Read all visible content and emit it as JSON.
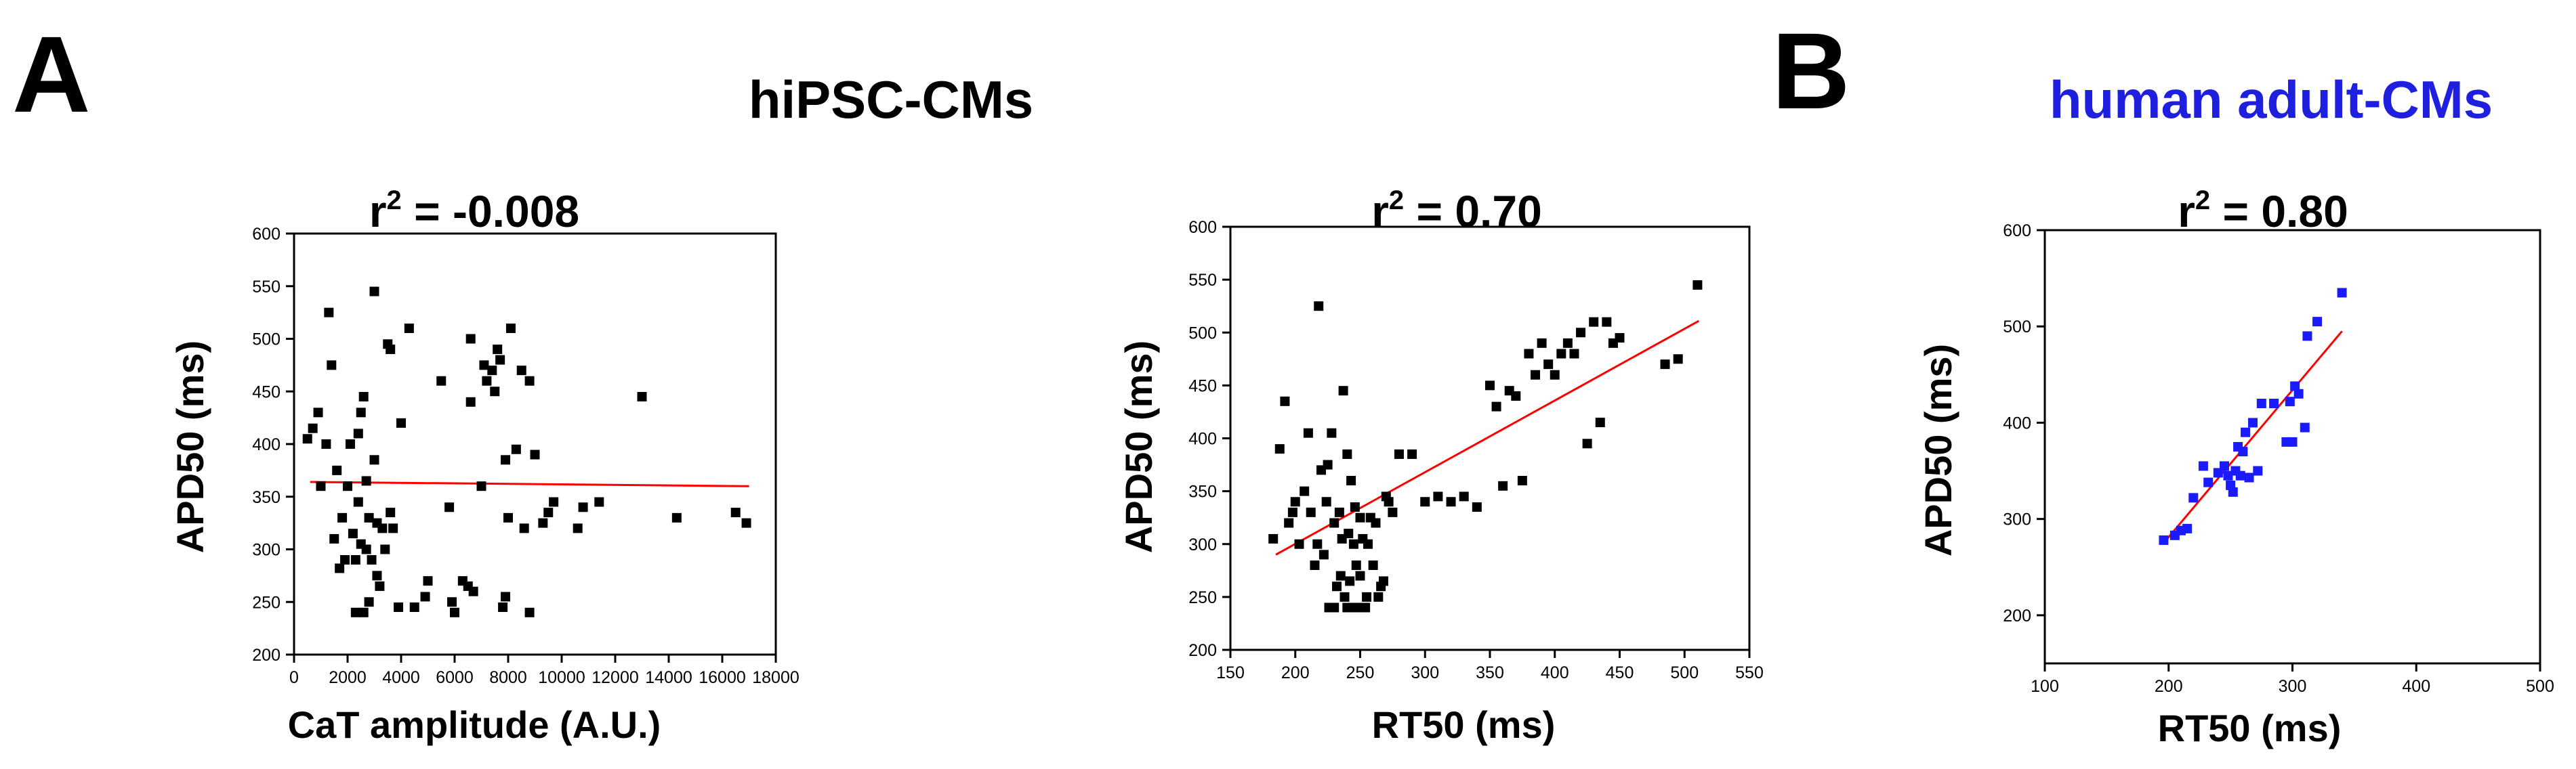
{
  "panel_letters": {
    "a": "A",
    "b": "B"
  },
  "group_titles": {
    "hipsc": "hiPSC-CMs",
    "adult": "human adult-CMs"
  },
  "colors": {
    "adult_title": "#1f1fe0",
    "adult_marker": "#1a1aff",
    "fit_line": "#ff0000",
    "marker": "#000000"
  },
  "chart_data": [
    {
      "id": "p1",
      "type": "scatter",
      "title": "r2 = -0.008",
      "r2_text": {
        "prefix": "r",
        "sup": "2",
        "suffix": " = -0.008"
      },
      "xlabel": "CaT amplitude (A.U.)",
      "ylabel": "APD50 (ms)",
      "xlim": [
        0,
        18000
      ],
      "ylim": [
        200,
        600
      ],
      "xticks": [
        0,
        2000,
        4000,
        6000,
        8000,
        10000,
        12000,
        14000,
        16000,
        18000
      ],
      "yticks": [
        200,
        250,
        300,
        350,
        400,
        450,
        500,
        550,
        600
      ],
      "marker": "square",
      "marker_color": "#000000",
      "fit": {
        "x": [
          600,
          17000
        ],
        "y": [
          364,
          360
        ]
      },
      "points": [
        [
          500,
          405
        ],
        [
          700,
          415
        ],
        [
          900,
          430
        ],
        [
          1000,
          360
        ],
        [
          1200,
          400
        ],
        [
          1300,
          525
        ],
        [
          1400,
          475
        ],
        [
          1500,
          310
        ],
        [
          1600,
          375
        ],
        [
          1700,
          282
        ],
        [
          1800,
          330
        ],
        [
          1900,
          290
        ],
        [
          2000,
          360
        ],
        [
          2100,
          400
        ],
        [
          2200,
          315
        ],
        [
          2300,
          240
        ],
        [
          2300,
          290
        ],
        [
          2400,
          410
        ],
        [
          2400,
          345
        ],
        [
          2500,
          430
        ],
        [
          2500,
          305
        ],
        [
          2600,
          445
        ],
        [
          2600,
          240
        ],
        [
          2700,
          365
        ],
        [
          2700,
          300
        ],
        [
          2800,
          330
        ],
        [
          2800,
          250
        ],
        [
          2900,
          290
        ],
        [
          3000,
          545
        ],
        [
          3000,
          385
        ],
        [
          3100,
          325
        ],
        [
          3100,
          275
        ],
        [
          3200,
          265
        ],
        [
          3300,
          320
        ],
        [
          3400,
          300
        ],
        [
          3500,
          495
        ],
        [
          3600,
          490
        ],
        [
          3600,
          335
        ],
        [
          3700,
          320
        ],
        [
          3900,
          245
        ],
        [
          4000,
          420
        ],
        [
          4300,
          510
        ],
        [
          4500,
          245
        ],
        [
          4900,
          255
        ],
        [
          5000,
          270
        ],
        [
          5500,
          460
        ],
        [
          5800,
          340
        ],
        [
          5900,
          250
        ],
        [
          6000,
          240
        ],
        [
          6300,
          270
        ],
        [
          6500,
          265
        ],
        [
          6600,
          500
        ],
        [
          6600,
          440
        ],
        [
          6700,
          260
        ],
        [
          7000,
          360
        ],
        [
          7100,
          475
        ],
        [
          7200,
          460
        ],
        [
          7400,
          470
        ],
        [
          7500,
          450
        ],
        [
          7600,
          490
        ],
        [
          7700,
          480
        ],
        [
          7800,
          245
        ],
        [
          7900,
          255
        ],
        [
          7900,
          385
        ],
        [
          8000,
          330
        ],
        [
          8100,
          510
        ],
        [
          8300,
          395
        ],
        [
          8500,
          470
        ],
        [
          8600,
          320
        ],
        [
          8800,
          240
        ],
        [
          8800,
          460
        ],
        [
          9000,
          390
        ],
        [
          9300,
          325
        ],
        [
          9500,
          335
        ],
        [
          9700,
          345
        ],
        [
          10600,
          320
        ],
        [
          10800,
          340
        ],
        [
          11400,
          345
        ],
        [
          13000,
          445
        ],
        [
          14300,
          330
        ],
        [
          16500,
          335
        ],
        [
          16900,
          325
        ]
      ]
    },
    {
      "id": "p2",
      "type": "scatter",
      "title": "r2 = 0.70",
      "r2_text": {
        "prefix": "r",
        "sup": "2",
        "suffix": " = 0.70"
      },
      "xlabel": "RT50 (ms)",
      "ylabel": "APD50 (ms)",
      "xlim": [
        150,
        550
      ],
      "ylim": [
        200,
        600
      ],
      "xticks": [
        150,
        200,
        250,
        300,
        350,
        400,
        450,
        500,
        550
      ],
      "yticks": [
        200,
        250,
        300,
        350,
        400,
        450,
        500,
        550,
        600
      ],
      "marker": "square",
      "marker_color": "#000000",
      "fit": {
        "x": [
          185,
          511
        ],
        "y": [
          290,
          511
        ]
      },
      "points": [
        [
          183,
          305
        ],
        [
          188,
          390
        ],
        [
          192,
          435
        ],
        [
          195,
          320
        ],
        [
          198,
          330
        ],
        [
          200,
          340
        ],
        [
          203,
          300
        ],
        [
          207,
          350
        ],
        [
          210,
          405
        ],
        [
          212,
          330
        ],
        [
          215,
          280
        ],
        [
          217,
          300
        ],
        [
          218,
          525
        ],
        [
          220,
          370
        ],
        [
          222,
          290
        ],
        [
          224,
          340
        ],
        [
          225,
          375
        ],
        [
          226,
          240
        ],
        [
          228,
          405
        ],
        [
          230,
          240
        ],
        [
          230,
          320
        ],
        [
          232,
          260
        ],
        [
          234,
          330
        ],
        [
          235,
          270
        ],
        [
          236,
          305
        ],
        [
          237,
          445
        ],
        [
          238,
          250
        ],
        [
          240,
          240
        ],
        [
          240,
          385
        ],
        [
          241,
          310
        ],
        [
          242,
          265
        ],
        [
          243,
          360
        ],
        [
          244,
          240
        ],
        [
          245,
          300
        ],
        [
          246,
          335
        ],
        [
          247,
          280
        ],
        [
          249,
          240
        ],
        [
          250,
          270
        ],
        [
          250,
          325
        ],
        [
          252,
          305
        ],
        [
          254,
          240
        ],
        [
          255,
          250
        ],
        [
          256,
          300
        ],
        [
          258,
          325
        ],
        [
          260,
          280
        ],
        [
          262,
          320
        ],
        [
          264,
          250
        ],
        [
          266,
          260
        ],
        [
          268,
          265
        ],
        [
          270,
          345
        ],
        [
          272,
          340
        ],
        [
          275,
          330
        ],
        [
          280,
          385
        ],
        [
          290,
          385
        ],
        [
          300,
          340
        ],
        [
          310,
          345
        ],
        [
          320,
          340
        ],
        [
          330,
          345
        ],
        [
          340,
          335
        ],
        [
          350,
          450
        ],
        [
          355,
          430
        ],
        [
          360,
          355
        ],
        [
          365,
          445
        ],
        [
          370,
          440
        ],
        [
          375,
          360
        ],
        [
          380,
          480
        ],
        [
          385,
          460
        ],
        [
          390,
          490
        ],
        [
          395,
          470
        ],
        [
          400,
          460
        ],
        [
          405,
          480
        ],
        [
          410,
          490
        ],
        [
          415,
          480
        ],
        [
          420,
          500
        ],
        [
          425,
          395
        ],
        [
          430,
          510
        ],
        [
          435,
          415
        ],
        [
          440,
          510
        ],
        [
          445,
          490
        ],
        [
          450,
          495
        ],
        [
          485,
          470
        ],
        [
          495,
          475
        ],
        [
          510,
          545
        ]
      ]
    },
    {
      "id": "p3",
      "type": "scatter",
      "title": "r2 = 0.80",
      "r2_text": {
        "prefix": "r",
        "sup": "2",
        "suffix": " = 0.80"
      },
      "xlabel": "RT50 (ms)",
      "ylabel": "APD50 (ms)",
      "xlim": [
        100,
        500
      ],
      "ylim": [
        150,
        600
      ],
      "xticks": [
        100,
        200,
        300,
        400,
        500
      ],
      "yticks": [
        200,
        300,
        400,
        500,
        600
      ],
      "marker": "square",
      "marker_color": "#1a1aff",
      "fit": {
        "x": [
          196,
          340
        ],
        "y": [
          275,
          495
        ]
      },
      "points": [
        [
          196,
          278
        ],
        [
          205,
          283
        ],
        [
          210,
          288
        ],
        [
          215,
          290
        ],
        [
          220,
          322
        ],
        [
          228,
          355
        ],
        [
          232,
          338
        ],
        [
          240,
          348
        ],
        [
          245,
          355
        ],
        [
          248,
          345
        ],
        [
          250,
          335
        ],
        [
          252,
          328
        ],
        [
          254,
          350
        ],
        [
          256,
          375
        ],
        [
          258,
          345
        ],
        [
          260,
          370
        ],
        [
          262,
          390
        ],
        [
          265,
          343
        ],
        [
          268,
          400
        ],
        [
          272,
          350
        ],
        [
          275,
          420
        ],
        [
          285,
          420
        ],
        [
          295,
          380
        ],
        [
          298,
          422
        ],
        [
          300,
          380
        ],
        [
          302,
          438
        ],
        [
          305,
          430
        ],
        [
          310,
          395
        ],
        [
          312,
          490
        ],
        [
          320,
          505
        ],
        [
          340,
          535
        ]
      ]
    }
  ]
}
